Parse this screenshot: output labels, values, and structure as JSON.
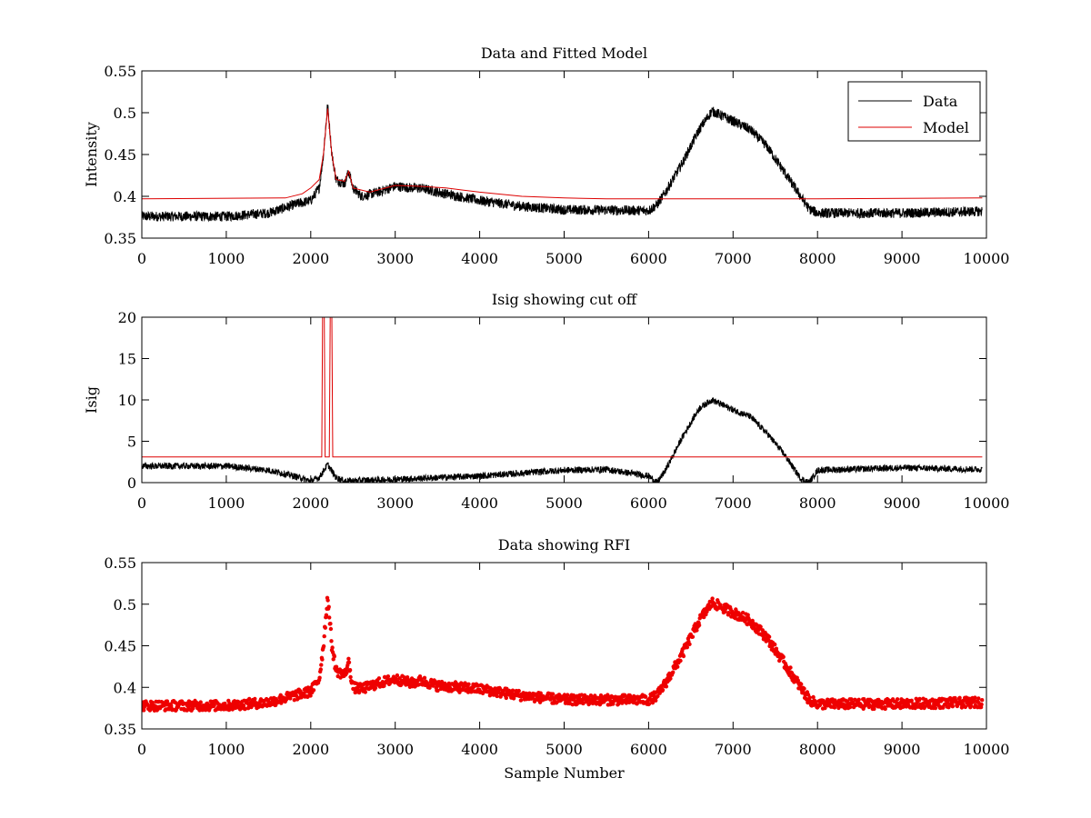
{
  "chart_data": [
    {
      "type": "line",
      "title": "Data and Fitted Model",
      "xlabel": "",
      "ylabel": "Intensity",
      "xlim": [
        0,
        10000
      ],
      "ylim": [
        0.35,
        0.55
      ],
      "xticks": [
        "0",
        "1000",
        "2000",
        "3000",
        "4000",
        "5000",
        "6000",
        "7000",
        "8000",
        "9000",
        "10000"
      ],
      "yticks": [
        "0.35",
        "0.4",
        "0.45",
        "0.5",
        "0.55"
      ],
      "legend_position": "top-right",
      "series": [
        {
          "name": "Data",
          "color": "#000000",
          "noise": 0.012,
          "points": [
            [
              0,
              0.376
            ],
            [
              1000,
              0.376
            ],
            [
              1500,
              0.38
            ],
            [
              1800,
              0.39
            ],
            [
              2000,
              0.395
            ],
            [
              2100,
              0.41
            ],
            [
              2150,
              0.45
            ],
            [
              2200,
              0.51
            ],
            [
              2250,
              0.45
            ],
            [
              2300,
              0.42
            ],
            [
              2400,
              0.415
            ],
            [
              2450,
              0.43
            ],
            [
              2500,
              0.41
            ],
            [
              2600,
              0.4
            ],
            [
              2800,
              0.405
            ],
            [
              3000,
              0.412
            ],
            [
              3200,
              0.41
            ],
            [
              3300,
              0.41
            ],
            [
              3500,
              0.405
            ],
            [
              4000,
              0.395
            ],
            [
              4500,
              0.388
            ],
            [
              5000,
              0.384
            ],
            [
              6000,
              0.383
            ],
            [
              6100,
              0.39
            ],
            [
              6200,
              0.405
            ],
            [
              6400,
              0.44
            ],
            [
              6600,
              0.48
            ],
            [
              6750,
              0.502
            ],
            [
              7000,
              0.49
            ],
            [
              7200,
              0.48
            ],
            [
              7400,
              0.46
            ],
            [
              7600,
              0.43
            ],
            [
              7800,
              0.4
            ],
            [
              7900,
              0.385
            ],
            [
              8000,
              0.38
            ],
            [
              9000,
              0.38
            ],
            [
              9950,
              0.382
            ]
          ]
        },
        {
          "name": "Model",
          "color": "#dd0000",
          "noise": 0,
          "points": [
            [
              0,
              0.397
            ],
            [
              1700,
              0.398
            ],
            [
              1900,
              0.403
            ],
            [
              2000,
              0.41
            ],
            [
              2100,
              0.42
            ],
            [
              2150,
              0.45
            ],
            [
              2200,
              0.505
            ],
            [
              2250,
              0.45
            ],
            [
              2300,
              0.42
            ],
            [
              2400,
              0.418
            ],
            [
              2450,
              0.43
            ],
            [
              2500,
              0.41
            ],
            [
              2700,
              0.405
            ],
            [
              3000,
              0.413
            ],
            [
              3300,
              0.412
            ],
            [
              3600,
              0.41
            ],
            [
              4000,
              0.405
            ],
            [
              4500,
              0.4
            ],
            [
              5000,
              0.398
            ],
            [
              5500,
              0.397
            ],
            [
              6000,
              0.397
            ],
            [
              8000,
              0.397
            ],
            [
              9950,
              0.398
            ]
          ]
        }
      ]
    },
    {
      "type": "line",
      "title": "Isig showing cut off",
      "xlabel": "",
      "ylabel": "Isig",
      "xlim": [
        0,
        10000
      ],
      "ylim": [
        0,
        20
      ],
      "xticks": [
        "0",
        "1000",
        "2000",
        "3000",
        "4000",
        "5000",
        "6000",
        "7000",
        "8000",
        "9000",
        "10000"
      ],
      "yticks": [
        "0",
        "5",
        "10",
        "15",
        "20"
      ],
      "series": [
        {
          "name": "",
          "color": "#000000",
          "noise": 0.8,
          "points": [
            [
              0,
              2.0
            ],
            [
              1000,
              2.0
            ],
            [
              1500,
              1.5
            ],
            [
              1800,
              0.8
            ],
            [
              2000,
              0.2
            ],
            [
              2100,
              0.6
            ],
            [
              2200,
              2.2
            ],
            [
              2300,
              0.6
            ],
            [
              2400,
              0.2
            ],
            [
              3000,
              0.4
            ],
            [
              4000,
              0.8
            ],
            [
              5000,
              1.5
            ],
            [
              5500,
              1.6
            ],
            [
              6000,
              0.8
            ],
            [
              6100,
              0.0
            ],
            [
              6200,
              1.5
            ],
            [
              6400,
              5.5
            ],
            [
              6600,
              9.0
            ],
            [
              6750,
              10.0
            ],
            [
              7000,
              8.8
            ],
            [
              7200,
              8.0
            ],
            [
              7400,
              6.0
            ],
            [
              7600,
              3.5
            ],
            [
              7800,
              0.5
            ],
            [
              7900,
              0.0
            ],
            [
              8000,
              1.5
            ],
            [
              9000,
              1.8
            ],
            [
              9950,
              1.6
            ]
          ]
        },
        {
          "name": "",
          "color": "#dd0000",
          "noise": 0,
          "points": [
            [
              0,
              3.1
            ],
            [
              2130,
              3.1
            ],
            [
              2140,
              20
            ],
            [
              2160,
              20
            ],
            [
              2170,
              3.1
            ],
            [
              2220,
              3.1
            ],
            [
              2230,
              20
            ],
            [
              2250,
              20
            ],
            [
              2260,
              3.1
            ],
            [
              9950,
              3.1
            ]
          ]
        }
      ]
    },
    {
      "type": "scatter",
      "title": "Data showing RFI",
      "xlabel": "Sample Number",
      "ylabel": "",
      "xlim": [
        0,
        10000
      ],
      "ylim": [
        0.35,
        0.55
      ],
      "xticks": [
        "0",
        "1000",
        "2000",
        "3000",
        "4000",
        "5000",
        "6000",
        "7000",
        "8000",
        "9000",
        "10000"
      ],
      "yticks": [
        "0.35",
        "0.4",
        "0.45",
        "0.5",
        "0.55"
      ],
      "series": [
        {
          "name": "",
          "color": "#ee0000",
          "noise": 0.012,
          "points": [
            [
              0,
              0.378
            ],
            [
              1000,
              0.378
            ],
            [
              1500,
              0.382
            ],
            [
              1800,
              0.39
            ],
            [
              2000,
              0.395
            ],
            [
              2100,
              0.41
            ],
            [
              2150,
              0.45
            ],
            [
              2200,
              0.51
            ],
            [
              2250,
              0.45
            ],
            [
              2300,
              0.42
            ],
            [
              2400,
              0.415
            ],
            [
              2450,
              0.43
            ],
            [
              2500,
              0.4
            ],
            [
              2600,
              0.398
            ],
            [
              2800,
              0.405
            ],
            [
              3000,
              0.41
            ],
            [
              3200,
              0.405
            ],
            [
              3300,
              0.408
            ],
            [
              3500,
              0.402
            ],
            [
              4000,
              0.398
            ],
            [
              4500,
              0.39
            ],
            [
              5000,
              0.385
            ],
            [
              6000,
              0.385
            ],
            [
              6100,
              0.39
            ],
            [
              6200,
              0.405
            ],
            [
              6400,
              0.44
            ],
            [
              6600,
              0.48
            ],
            [
              6750,
              0.502
            ],
            [
              7000,
              0.49
            ],
            [
              7200,
              0.48
            ],
            [
              7400,
              0.46
            ],
            [
              7600,
              0.43
            ],
            [
              7800,
              0.4
            ],
            [
              7900,
              0.385
            ],
            [
              8000,
              0.38
            ],
            [
              9000,
              0.38
            ],
            [
              9950,
              0.382
            ]
          ]
        }
      ]
    }
  ]
}
